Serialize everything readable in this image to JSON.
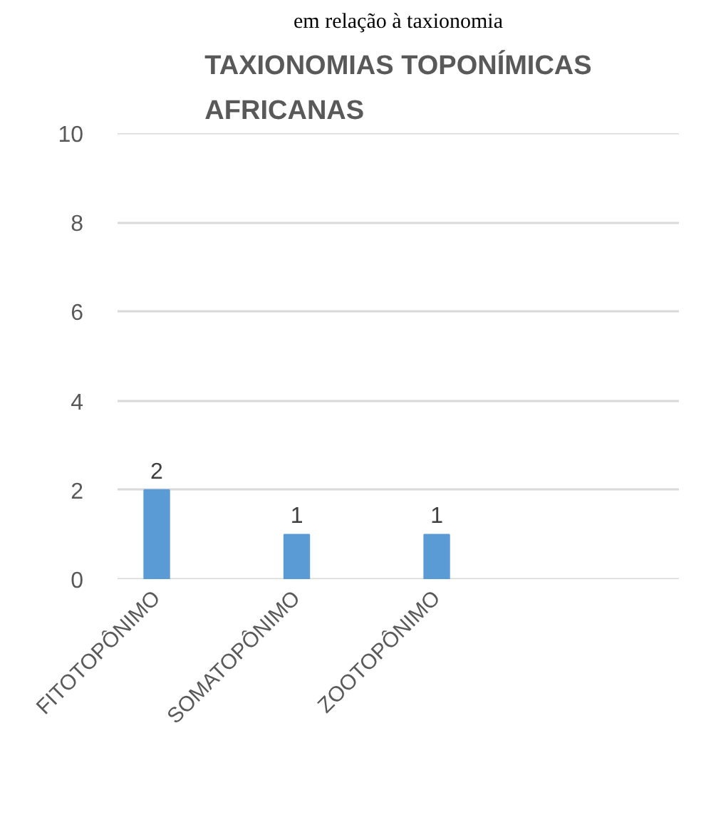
{
  "chart_data": {
    "type": "bar",
    "title": "TAXIONOMIAS TOPONÍMICAS AFRICANAS",
    "annotations": [
      "em relação à taxionomia"
    ],
    "categories": [
      "FITOTOPÔNIMO",
      "SOMATOPÔNIMO",
      "ZOOTOPÔNIMO",
      null
    ],
    "values": [
      2,
      1,
      1,
      null
    ],
    "color": "#5b9bd5",
    "ylim": [
      0,
      10
    ],
    "yticks": [
      0,
      2,
      4,
      6,
      8,
      10
    ],
    "grid": "y",
    "data_labels": true
  }
}
